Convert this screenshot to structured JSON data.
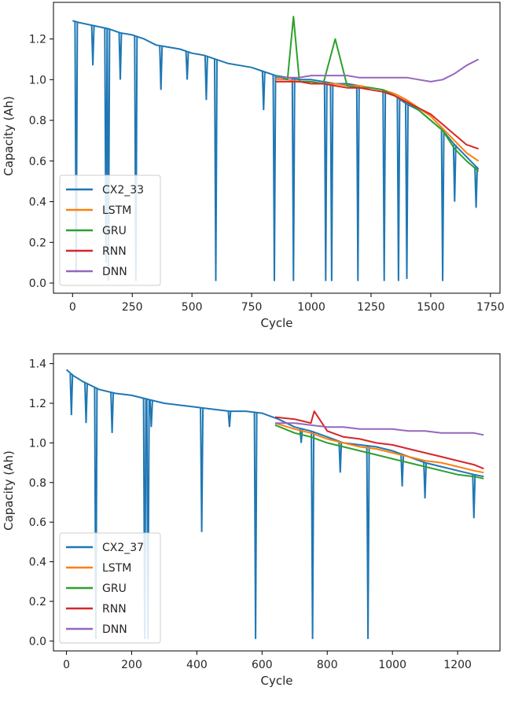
{
  "chart_data": [
    {
      "type": "line",
      "xlabel": "Cycle",
      "ylabel": "Capacity (Ah)",
      "xlim": [
        -80,
        1790
      ],
      "ylim": [
        -0.05,
        1.38
      ],
      "xticks": [
        0,
        250,
        500,
        750,
        1000,
        1250,
        1500,
        1750
      ],
      "yticks": [
        "0.0",
        "0.2",
        "0.4",
        "0.6",
        "0.8",
        "1.0",
        "1.2"
      ],
      "legend_position": "lower-left",
      "series": [
        {
          "name": "CX2_33",
          "color": "#1f77b4",
          "x": [
            0,
            30,
            150,
            200,
            250,
            300,
            350,
            400,
            450,
            500,
            550,
            600,
            650,
            700,
            750,
            800,
            850,
            900,
            950,
            1000,
            1050,
            1100,
            1150,
            1200,
            1250,
            1300,
            1350,
            1400,
            1450,
            1500,
            1550,
            1600,
            1650,
            1700
          ],
          "y": [
            1.29,
            1.28,
            1.25,
            1.23,
            1.22,
            1.2,
            1.17,
            1.16,
            1.15,
            1.13,
            1.12,
            1.1,
            1.08,
            1.07,
            1.06,
            1.04,
            1.02,
            1.01,
            1.0,
            1.0,
            0.99,
            0.98,
            0.98,
            0.97,
            0.96,
            0.95,
            0.92,
            0.88,
            0.85,
            0.8,
            0.75,
            0.68,
            0.62,
            0.56
          ],
          "drops": [
            [
              15,
              0.05
            ],
            [
              85,
              1.07
            ],
            [
              140,
              0.1
            ],
            [
              150,
              0.01
            ],
            [
              200,
              1.0
            ],
            [
              265,
              0.01
            ],
            [
              370,
              0.95
            ],
            [
              480,
              1.0
            ],
            [
              560,
              0.9
            ],
            [
              600,
              0.01
            ],
            [
              800,
              0.85
            ],
            [
              845,
              0.01
            ],
            [
              925,
              0.01
            ],
            [
              1060,
              0.01
            ],
            [
              1085,
              0.01
            ],
            [
              1195,
              0.01
            ],
            [
              1305,
              0.01
            ],
            [
              1365,
              0.01
            ],
            [
              1400,
              0.02
            ],
            [
              1550,
              0.01
            ],
            [
              1600,
              0.4
            ],
            [
              1690,
              0.37
            ]
          ]
        },
        {
          "name": "LSTM",
          "color": "#ff7f0e",
          "x": [
            850,
            900,
            950,
            1000,
            1050,
            1100,
            1150,
            1200,
            1250,
            1300,
            1350,
            1400,
            1450,
            1500,
            1550,
            1600,
            1650,
            1700
          ],
          "y": [
            1.0,
            1.0,
            0.99,
            0.99,
            0.98,
            0.98,
            0.97,
            0.97,
            0.96,
            0.95,
            0.93,
            0.9,
            0.86,
            0.82,
            0.76,
            0.7,
            0.64,
            0.6
          ]
        },
        {
          "name": "GRU",
          "color": "#2ca02c",
          "x": [
            850,
            900,
            925,
            950,
            1000,
            1050,
            1100,
            1150,
            1200,
            1250,
            1300,
            1350,
            1400,
            1450,
            1500,
            1550,
            1600,
            1650,
            1700
          ],
          "y": [
            1.02,
            1.0,
            1.31,
            0.99,
            0.99,
            0.98,
            1.2,
            0.97,
            0.96,
            0.96,
            0.95,
            0.92,
            0.89,
            0.85,
            0.8,
            0.75,
            0.66,
            0.6,
            0.55
          ]
        },
        {
          "name": "RNN",
          "color": "#d62728",
          "x": [
            850,
            900,
            950,
            1000,
            1050,
            1100,
            1150,
            1200,
            1250,
            1300,
            1350,
            1400,
            1450,
            1500,
            1550,
            1600,
            1650,
            1700
          ],
          "y": [
            0.99,
            0.99,
            0.99,
            0.98,
            0.98,
            0.97,
            0.96,
            0.96,
            0.95,
            0.94,
            0.92,
            0.89,
            0.86,
            0.83,
            0.78,
            0.73,
            0.68,
            0.66
          ]
        },
        {
          "name": "DNN",
          "color": "#9467bd",
          "x": [
            850,
            900,
            950,
            1000,
            1050,
            1100,
            1150,
            1200,
            1250,
            1300,
            1350,
            1400,
            1450,
            1500,
            1550,
            1600,
            1650,
            1700
          ],
          "y": [
            1.01,
            1.01,
            1.01,
            1.02,
            1.02,
            1.02,
            1.02,
            1.01,
            1.01,
            1.01,
            1.01,
            1.01,
            1.0,
            0.99,
            1.0,
            1.03,
            1.07,
            1.1
          ]
        }
      ]
    },
    {
      "type": "line",
      "xlabel": "Cycle",
      "ylabel": "Capacity (Ah)",
      "xlim": [
        -40,
        1330
      ],
      "ylim": [
        -0.05,
        1.45
      ],
      "xticks": [
        0,
        200,
        400,
        600,
        800,
        1000,
        1200
      ],
      "yticks": [
        "0.0",
        "0.2",
        "0.4",
        "0.6",
        "0.8",
        "1.0",
        "1.2",
        "1.4"
      ],
      "legend_position": "lower-left",
      "series": [
        {
          "name": "CX2_37",
          "color": "#1f77b4",
          "x": [
            0,
            20,
            50,
            100,
            150,
            200,
            250,
            300,
            350,
            400,
            450,
            500,
            550,
            600,
            650,
            700,
            750,
            800,
            850,
            900,
            950,
            1000,
            1050,
            1100,
            1150,
            1200,
            1250,
            1280
          ],
          "y": [
            1.37,
            1.34,
            1.31,
            1.27,
            1.25,
            1.24,
            1.22,
            1.2,
            1.19,
            1.18,
            1.17,
            1.16,
            1.16,
            1.15,
            1.12,
            1.08,
            1.06,
            1.03,
            1.0,
            0.99,
            0.98,
            0.96,
            0.93,
            0.9,
            0.88,
            0.86,
            0.84,
            0.83
          ],
          "drops": [
            [
              15,
              1.14
            ],
            [
              60,
              1.1
            ],
            [
              90,
              0.01
            ],
            [
              140,
              1.05
            ],
            [
              240,
              0.01
            ],
            [
              250,
              0.01
            ],
            [
              260,
              1.08
            ],
            [
              415,
              0.55
            ],
            [
              500,
              1.08
            ],
            [
              580,
              0.01
            ],
            [
              720,
              1.0
            ],
            [
              755,
              0.01
            ],
            [
              840,
              0.85
            ],
            [
              925,
              0.01
            ],
            [
              1030,
              0.78
            ],
            [
              1100,
              0.72
            ],
            [
              1250,
              0.62
            ]
          ]
        },
        {
          "name": "LSTM",
          "color": "#ff7f0e",
          "x": [
            640,
            700,
            750,
            800,
            850,
            900,
            950,
            1000,
            1050,
            1100,
            1150,
            1200,
            1250,
            1280
          ],
          "y": [
            1.1,
            1.07,
            1.05,
            1.02,
            1.0,
            0.98,
            0.97,
            0.95,
            0.93,
            0.91,
            0.9,
            0.88,
            0.86,
            0.85
          ]
        },
        {
          "name": "GRU",
          "color": "#2ca02c",
          "x": [
            640,
            700,
            750,
            800,
            850,
            900,
            950,
            1000,
            1050,
            1100,
            1150,
            1200,
            1250,
            1280
          ],
          "y": [
            1.09,
            1.05,
            1.03,
            1.0,
            0.98,
            0.96,
            0.94,
            0.92,
            0.9,
            0.88,
            0.86,
            0.84,
            0.83,
            0.82
          ]
        },
        {
          "name": "RNN",
          "color": "#d62728",
          "x": [
            640,
            700,
            750,
            760,
            800,
            850,
            900,
            950,
            1000,
            1050,
            1100,
            1150,
            1200,
            1250,
            1280
          ],
          "y": [
            1.13,
            1.12,
            1.1,
            1.16,
            1.06,
            1.03,
            1.02,
            1.0,
            0.99,
            0.97,
            0.95,
            0.93,
            0.91,
            0.89,
            0.87
          ]
        },
        {
          "name": "DNN",
          "color": "#9467bd",
          "x": [
            640,
            700,
            750,
            800,
            850,
            900,
            950,
            1000,
            1050,
            1100,
            1150,
            1200,
            1250,
            1280
          ],
          "y": [
            1.1,
            1.1,
            1.09,
            1.08,
            1.08,
            1.07,
            1.07,
            1.07,
            1.06,
            1.06,
            1.05,
            1.05,
            1.05,
            1.04
          ]
        }
      ]
    }
  ]
}
